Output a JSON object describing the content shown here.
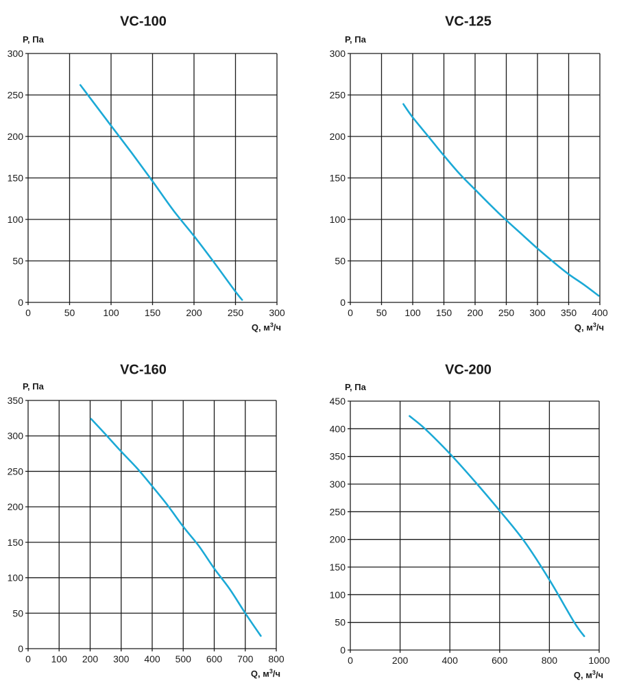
{
  "style": {
    "curve_color": "#1ba9d6",
    "grid_color": "#1a1a1a"
  },
  "chart_data": [
    {
      "type": "line",
      "title": "VC-100",
      "xlabel": "Q, м³/ч",
      "ylabel": "P, Па",
      "xlim": [
        0,
        300
      ],
      "ylim": [
        0,
        300
      ],
      "xticks": [
        0,
        50,
        100,
        150,
        200,
        250,
        300
      ],
      "yticks": [
        0,
        50,
        100,
        150,
        200,
        250,
        300
      ],
      "grid": true,
      "series": [
        {
          "name": "VC-100",
          "x": [
            63,
            75,
            100,
            125,
            150,
            175,
            200,
            225,
            250,
            258
          ],
          "y": [
            262,
            246,
            213,
            180,
            146,
            111,
            80,
            47,
            13,
            3
          ]
        }
      ]
    },
    {
      "type": "line",
      "title": "VC-125",
      "xlabel": "Q, м³/ч",
      "ylabel": "P, Па",
      "xlim": [
        0,
        400
      ],
      "ylim": [
        0,
        300
      ],
      "xticks": [
        0,
        50,
        100,
        150,
        200,
        250,
        300,
        350,
        400
      ],
      "yticks": [
        0,
        50,
        100,
        150,
        200,
        250,
        300
      ],
      "grid": true,
      "series": [
        {
          "name": "VC-125",
          "x": [
            85,
            100,
            125,
            150,
            175,
            200,
            225,
            250,
            275,
            300,
            325,
            350,
            375,
            398
          ],
          "y": [
            239,
            223,
            200,
            177,
            155,
            136,
            117,
            99,
            82,
            65,
            49,
            34,
            21,
            8
          ]
        }
      ]
    },
    {
      "type": "line",
      "title": "VC-160",
      "xlabel": "Q, м³/ч",
      "ylabel": "P, Па",
      "xlim": [
        0,
        800
      ],
      "ylim": [
        0,
        350
      ],
      "xticks": [
        0,
        100,
        200,
        300,
        400,
        500,
        600,
        700,
        800
      ],
      "yticks": [
        0,
        50,
        100,
        150,
        200,
        250,
        300,
        350
      ],
      "grid": true,
      "series": [
        {
          "name": "VC-160",
          "x": [
            203,
            250,
            300,
            350,
            400,
            450,
            500,
            550,
            600,
            650,
            700,
            750
          ],
          "y": [
            324,
            302,
            278,
            255,
            229,
            202,
            172,
            145,
            113,
            84,
            50,
            18
          ]
        }
      ]
    },
    {
      "type": "line",
      "title": "VC-200",
      "xlabel": "Q, м³/ч",
      "ylabel": "P, Па",
      "xlim": [
        0,
        1000
      ],
      "ylim": [
        0,
        450
      ],
      "xticks": [
        0,
        200,
        400,
        600,
        800,
        1000
      ],
      "yticks": [
        0,
        50,
        100,
        150,
        200,
        250,
        300,
        350,
        400,
        450
      ],
      "grid": true,
      "series": [
        {
          "name": "VC-200",
          "x": [
            238,
            300,
            400,
            500,
            600,
            700,
            800,
            900,
            940
          ],
          "y": [
            423,
            400,
            355,
            305,
            252,
            196,
            127,
            50,
            25
          ]
        }
      ]
    }
  ],
  "panels": [
    {
      "title": "VC-100",
      "ylabel": "P, Па",
      "xlabel_main": "Q, м",
      "xlabel_sup": "3",
      "xlabel_tail": "/ч"
    },
    {
      "title": "VC-125",
      "ylabel": "P, Па",
      "xlabel_main": "Q, м",
      "xlabel_sup": "3",
      "xlabel_tail": "/ч"
    },
    {
      "title": "VC-160",
      "ylabel": "P, Па",
      "xlabel_main": "Q, м",
      "xlabel_sup": "3",
      "xlabel_tail": "/ч"
    },
    {
      "title": "VC-200",
      "ylabel": "P, Па",
      "xlabel_main": "Q, м",
      "xlabel_sup": "3",
      "xlabel_tail": "/ч"
    }
  ]
}
